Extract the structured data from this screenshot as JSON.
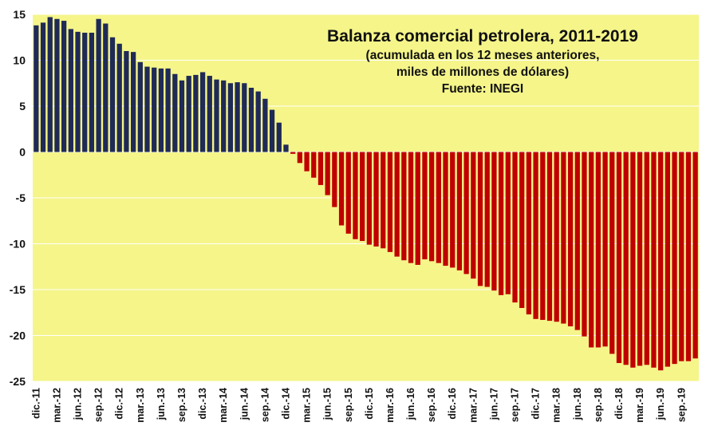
{
  "chart_data": {
    "type": "bar",
    "title": "Balanza comercial petrolera, 2011-2019",
    "subtitle_line1": "(acumulada en los 12 meses anteriores,",
    "subtitle_line2": "miles de millones de dólares)",
    "source": "Fuente: INEGI",
    "xlabel": "",
    "ylabel": "",
    "ylim": [
      -25,
      15
    ],
    "yticks": [
      15,
      10,
      5,
      0,
      -5,
      -10,
      -15,
      -20,
      -25
    ],
    "grid": true,
    "colors": {
      "positive": "#1f2a56",
      "negative": "#c00000",
      "plot_bg": "#f5f58a",
      "grid": "#ffffff"
    },
    "x_tick_labels": [
      "dic.-11",
      "mar.-12",
      "jun.-12",
      "sep.-12",
      "dic.-12",
      "mar.-13",
      "jun.-13",
      "sep.-13",
      "dic.-13",
      "mar.-14",
      "jun.-14",
      "sep.-14",
      "dic.-14",
      "mar.-15",
      "jun.-15",
      "sep.-15",
      "dic.-15",
      "mar.-16",
      "jun.-16",
      "sep.-16",
      "dic.-16",
      "mar.-17",
      "jun.-17",
      "sep.-17",
      "dic.-17",
      "mar.-18",
      "jun.-18",
      "sep.-18",
      "dic.-18",
      "mar.-19",
      "jun.-19",
      "sep.-19"
    ],
    "label_every": 3,
    "values": [
      13.8,
      14.1,
      14.7,
      14.5,
      14.3,
      13.4,
      13.1,
      13.0,
      13.0,
      14.5,
      14.0,
      12.5,
      11.8,
      11.0,
      10.9,
      9.8,
      9.3,
      9.2,
      9.1,
      9.1,
      8.5,
      7.8,
      8.3,
      8.4,
      8.7,
      8.3,
      7.9,
      7.8,
      7.5,
      7.6,
      7.5,
      7.0,
      6.6,
      5.8,
      4.6,
      3.2,
      0.8,
      -0.2,
      -1.2,
      -2.1,
      -2.8,
      -3.6,
      -4.7,
      -6.0,
      -8.0,
      -8.9,
      -9.5,
      -9.7,
      -10.1,
      -10.3,
      -10.5,
      -10.9,
      -11.4,
      -11.8,
      -12.1,
      -12.3,
      -11.7,
      -11.9,
      -12.1,
      -12.4,
      -12.6,
      -12.9,
      -13.3,
      -13.8,
      -14.6,
      -14.7,
      -15.1,
      -15.6,
      -15.5,
      -16.4,
      -17.0,
      -17.7,
      -18.2,
      -18.3,
      -18.4,
      -18.5,
      -18.7,
      -19.0,
      -19.4,
      -20.1,
      -21.3,
      -21.3,
      -21.2,
      -22.0,
      -23.0,
      -23.2,
      -23.5,
      -23.3,
      -23.2,
      -23.5,
      -23.8,
      -23.4,
      -23.1,
      -22.8,
      -22.8,
      -22.5
    ]
  }
}
